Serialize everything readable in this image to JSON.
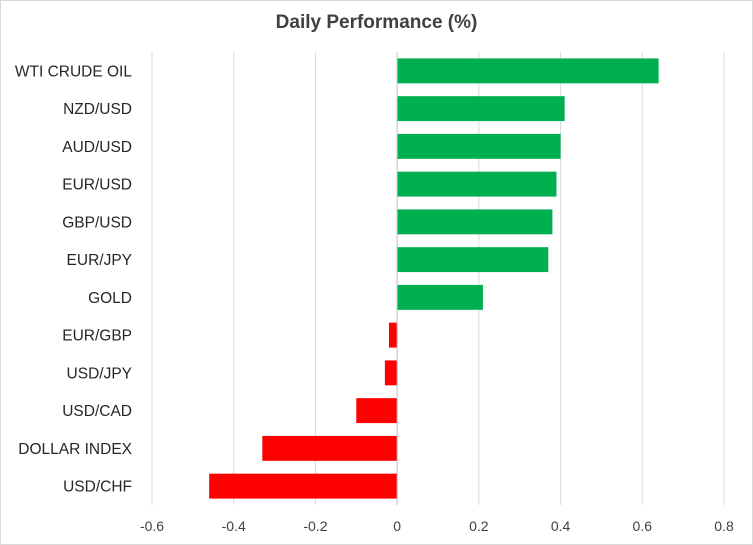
{
  "chart_data": {
    "type": "bar",
    "orientation": "horizontal",
    "title": "Daily Performance (%)",
    "xlabel": "",
    "ylabel": "",
    "categories": [
      "WTI CRUDE OIL",
      "NZD/USD",
      "AUD/USD",
      "EUR/USD",
      "GBP/USD",
      "EUR/JPY",
      "GOLD",
      "EUR/GBP",
      "USD/JPY",
      "USD/CAD",
      "DOLLAR INDEX",
      "USD/CHF"
    ],
    "values": [
      0.64,
      0.41,
      0.4,
      0.39,
      0.38,
      0.37,
      0.21,
      -0.02,
      -0.03,
      -0.1,
      -0.33,
      -0.46
    ],
    "xlim": [
      -0.6,
      0.8
    ],
    "xticks": [
      -0.6,
      -0.4,
      -0.2,
      0,
      0.2,
      0.4,
      0.6,
      0.8
    ],
    "xtick_labels": [
      "-0.6",
      "-0.4",
      "-0.2",
      "0",
      "0.2",
      "0.4",
      "0.6",
      "0.8"
    ],
    "grid": "vertical",
    "legend": "none",
    "colors": {
      "positive": "#00b050",
      "negative": "#ff0000",
      "grid": "#d9d9d9",
      "axis": "#bfbfbf"
    }
  }
}
